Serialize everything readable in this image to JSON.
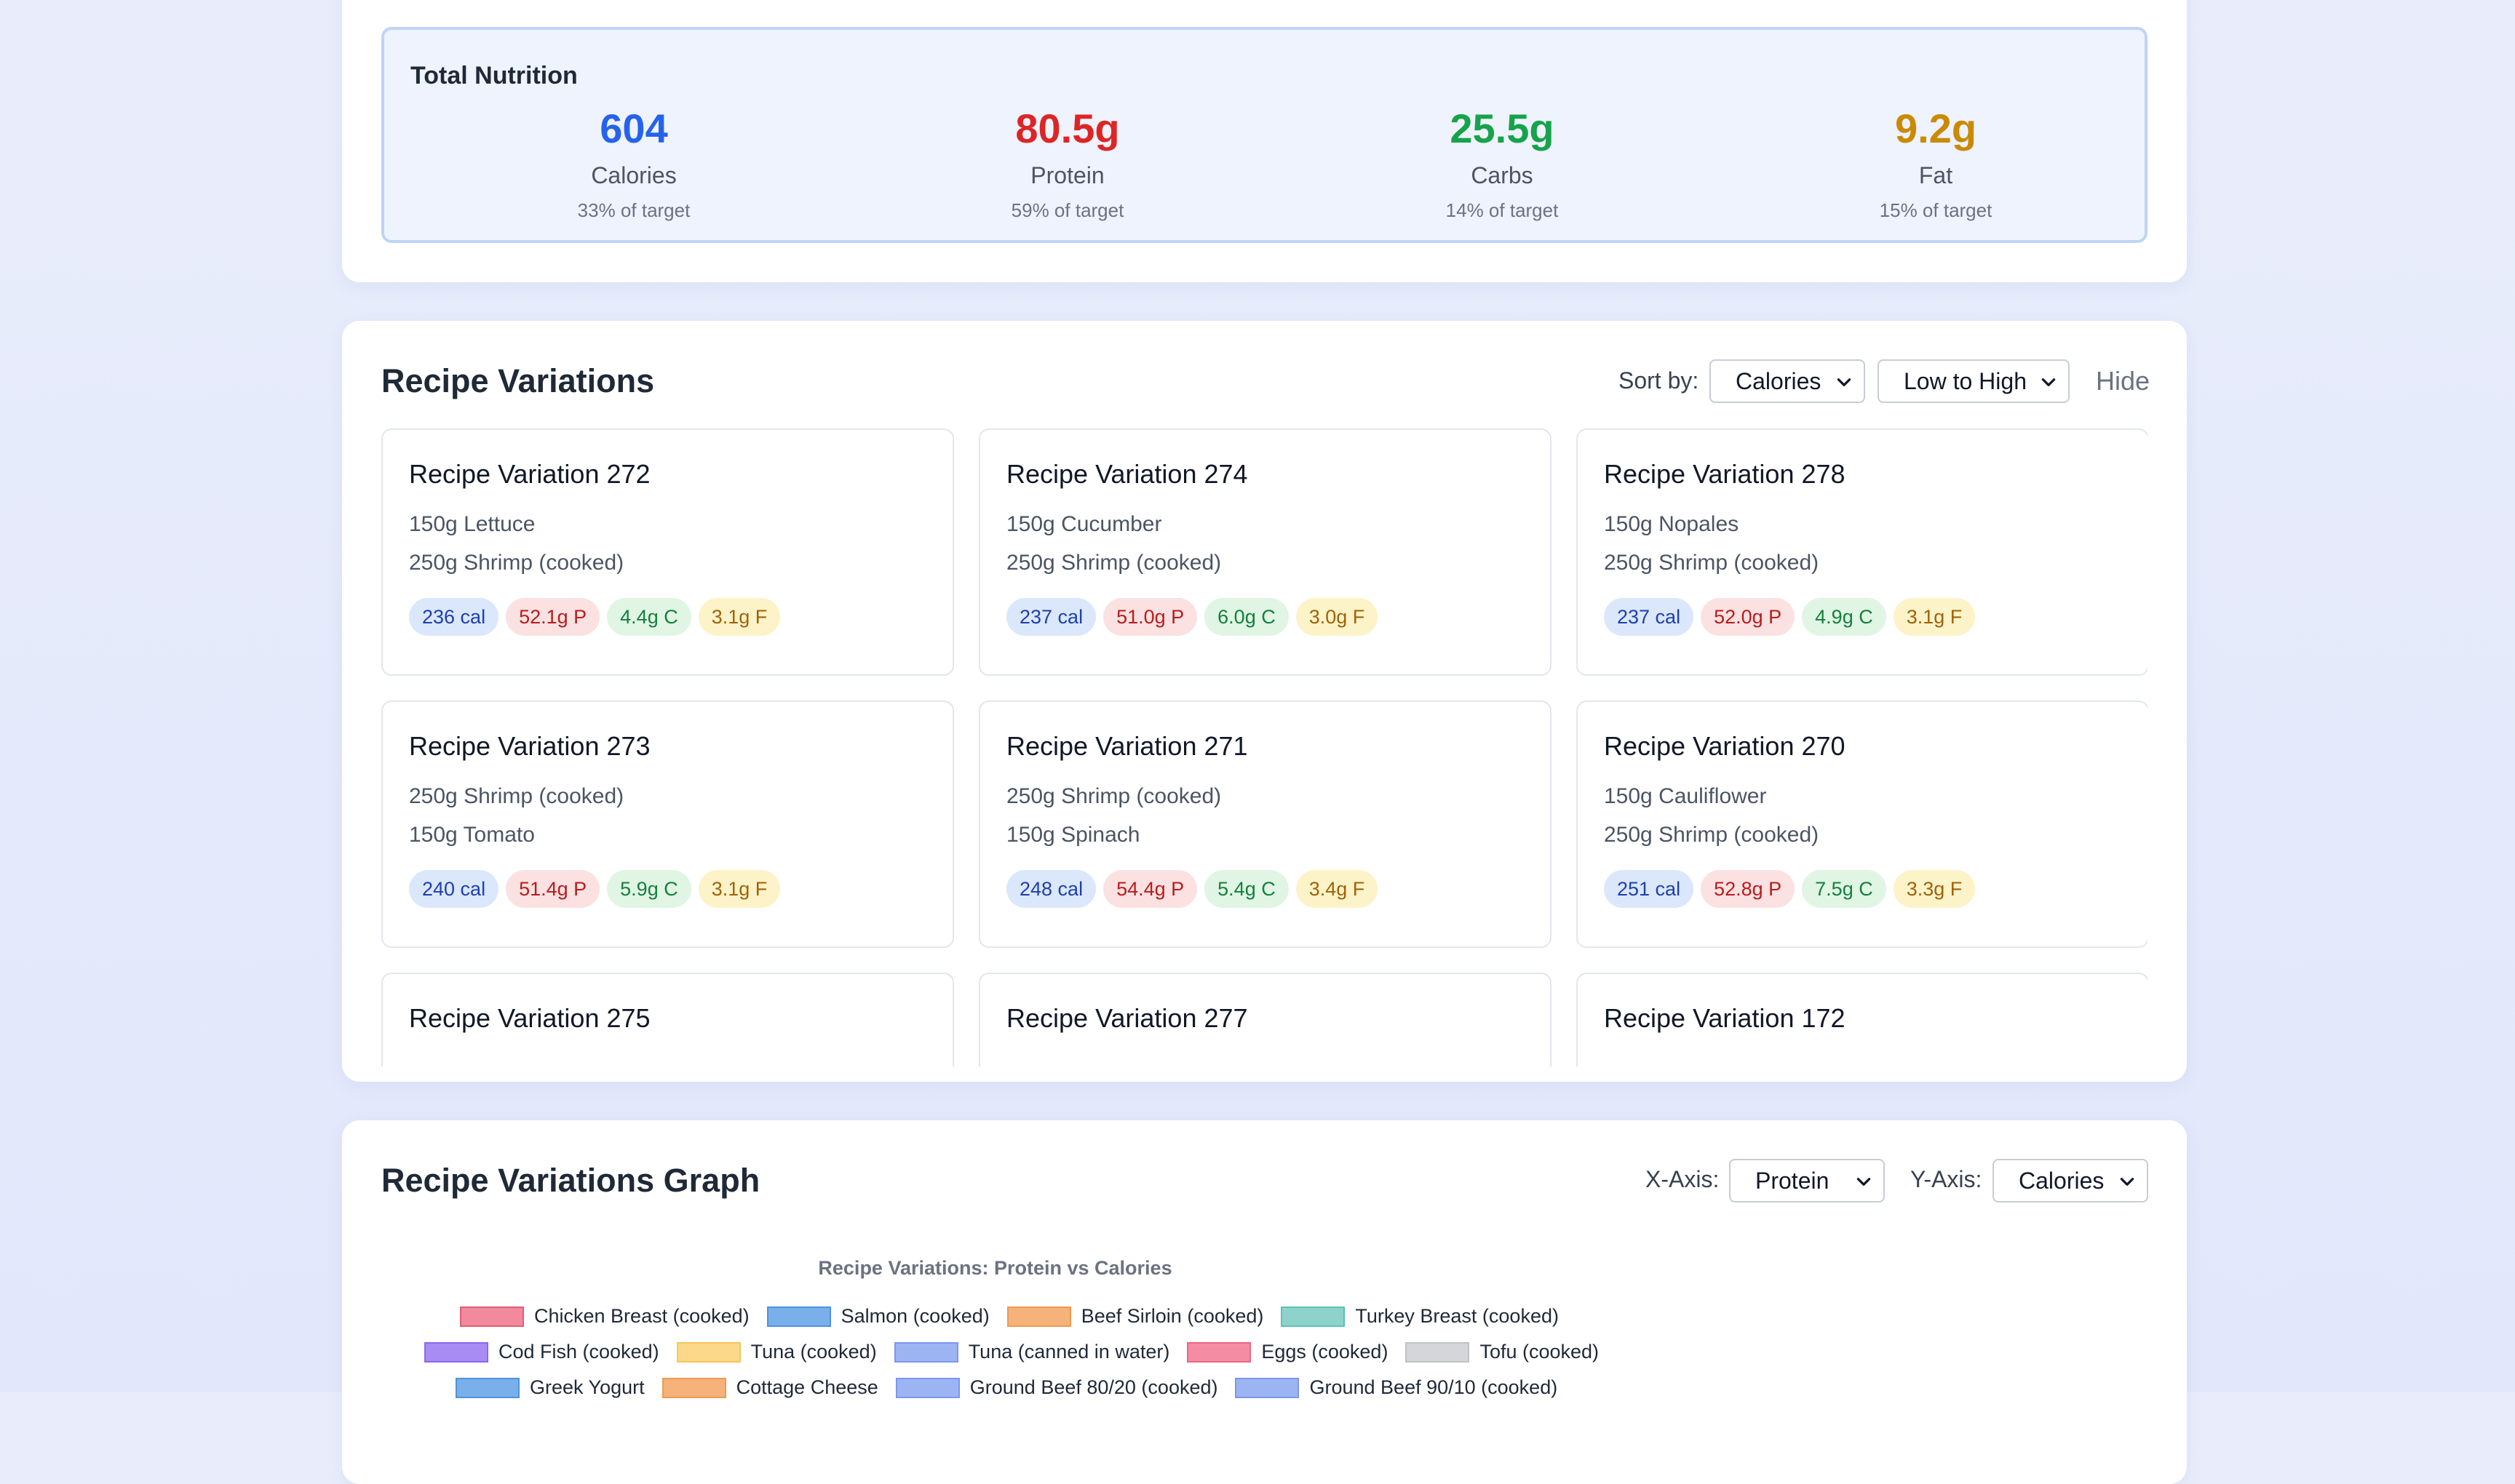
{
  "total": {
    "title": "Total Nutrition",
    "stats": [
      {
        "value": "604",
        "label": "Calories",
        "target": "33% of target",
        "color": "#2563eb"
      },
      {
        "value": "80.5g",
        "label": "Protein",
        "target": "59% of target",
        "color": "#dc2626"
      },
      {
        "value": "25.5g",
        "label": "Carbs",
        "target": "14% of target",
        "color": "#16a34a"
      },
      {
        "value": "9.2g",
        "label": "Fat",
        "target": "15% of target",
        "color": "#ca8a04"
      }
    ]
  },
  "variations": {
    "title": "Recipe Variations",
    "sort_label": "Sort by:",
    "sort_value": "Calories",
    "order_value": "Low to High",
    "hide_label": "Hide",
    "recipes": [
      {
        "title": "Recipe Variation 272",
        "ingredients": [
          "150g Lettuce",
          "250g Shrimp (cooked)"
        ],
        "cal": "236 cal",
        "p": "52.1g P",
        "c": "4.4g C",
        "f": "3.1g F"
      },
      {
        "title": "Recipe Variation 274",
        "ingredients": [
          "150g Cucumber",
          "250g Shrimp (cooked)"
        ],
        "cal": "237 cal",
        "p": "51.0g P",
        "c": "6.0g C",
        "f": "3.0g F"
      },
      {
        "title": "Recipe Variation 278",
        "ingredients": [
          "150g Nopales",
          "250g Shrimp (cooked)"
        ],
        "cal": "237 cal",
        "p": "52.0g P",
        "c": "4.9g C",
        "f": "3.1g F"
      },
      {
        "title": "Recipe Variation 273",
        "ingredients": [
          "250g Shrimp (cooked)",
          "150g Tomato"
        ],
        "cal": "240 cal",
        "p": "51.4g P",
        "c": "5.9g C",
        "f": "3.1g F"
      },
      {
        "title": "Recipe Variation 271",
        "ingredients": [
          "250g Shrimp (cooked)",
          "150g Spinach"
        ],
        "cal": "248 cal",
        "p": "54.4g P",
        "c": "5.4g C",
        "f": "3.4g F"
      },
      {
        "title": "Recipe Variation 270",
        "ingredients": [
          "150g Cauliflower",
          "250g Shrimp (cooked)"
        ],
        "cal": "251 cal",
        "p": "52.8g P",
        "c": "7.5g C",
        "f": "3.3g F"
      },
      {
        "title": "Recipe Variation 275",
        "ingredients": [],
        "cal": "",
        "p": "",
        "c": "",
        "f": ""
      },
      {
        "title": "Recipe Variation 277",
        "ingredients": [],
        "cal": "",
        "p": "",
        "c": "",
        "f": ""
      },
      {
        "title": "Recipe Variation 172",
        "ingredients": [],
        "cal": "",
        "p": "",
        "c": "",
        "f": ""
      }
    ]
  },
  "graph": {
    "title": "Recipe Variations Graph",
    "x_label": "X-Axis:",
    "x_value": "Protein",
    "y_label": "Y-Axis:",
    "y_value": "Calories",
    "chart_title": "Recipe Variations: Protein vs Calories",
    "legend_rows": [
      [
        {
          "name": "Chicken Breast (cooked)",
          "color": "#f08a9c",
          "border": "#e35d75"
        },
        {
          "name": "Salmon (cooked)",
          "color": "#7ab0ea",
          "border": "#4f92de"
        },
        {
          "name": "Beef Sirloin (cooked)",
          "color": "#f5b27a",
          "border": "#ee9a52"
        },
        {
          "name": "Turkey Breast (cooked)",
          "color": "#8dd3cb",
          "border": "#5fc0b5"
        }
      ],
      [
        {
          "name": "Cod Fish (cooked)",
          "color": "#a98cf3",
          "border": "#8b68ee"
        },
        {
          "name": "Tuna (cooked)",
          "color": "#fcd98a",
          "border": "#f8c65a"
        },
        {
          "name": "Tuna (canned in water)",
          "color": "#9db4f3",
          "border": "#7a97ee"
        },
        {
          "name": "Eggs (cooked)",
          "color": "#f48da3",
          "border": "#ec6684"
        },
        {
          "name": "Tofu (cooked)",
          "color": "#d4d6da",
          "border": "#bfc2c8"
        }
      ],
      [
        {
          "name": "Greek Yogurt",
          "color": "#7ab0ea",
          "border": "#4f92de"
        },
        {
          "name": "Cottage Cheese",
          "color": "#f5b27a",
          "border": "#ee9a52"
        },
        {
          "name": "Ground Beef 80/20 (cooked)",
          "color": "#9db4f3",
          "border": "#7a97ee"
        },
        {
          "name": "Ground Beef 90/10 (cooked)",
          "color": "#9db4f3",
          "border": "#7a97ee"
        }
      ]
    ]
  }
}
